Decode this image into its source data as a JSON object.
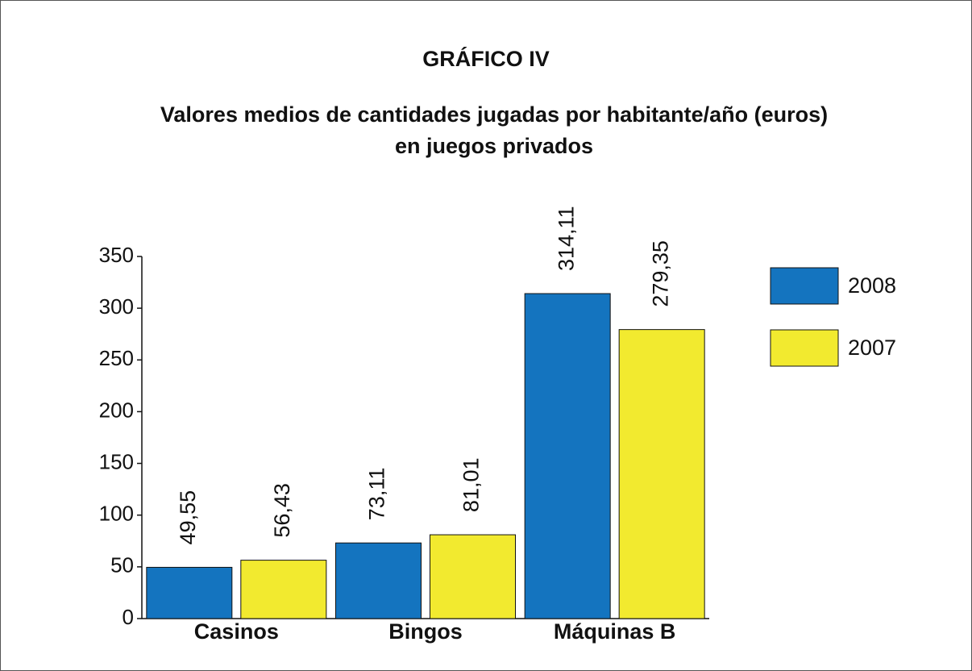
{
  "chart_data": {
    "type": "bar",
    "title": "GRÁFICO IV",
    "subtitle": [
      "Valores medios de cantidades jugadas por habitante/año (euros)",
      "en juegos privados"
    ],
    "categories": [
      "Casinos",
      "Bingos",
      "Máquinas B"
    ],
    "series": [
      {
        "name": "2008",
        "color": "#1474bf",
        "values": [
          49.55,
          73.11,
          314.11
        ],
        "value_labels": [
          "49,55",
          "73,11",
          "314,11"
        ]
      },
      {
        "name": "2007",
        "color": "#f2ea2f",
        "values": [
          56.43,
          81.01,
          279.35
        ],
        "value_labels": [
          "56,43",
          "81,01",
          "279,35"
        ]
      }
    ],
    "ylim": [
      0,
      350
    ],
    "yticks": [
      0,
      50,
      100,
      150,
      200,
      250,
      300,
      350
    ],
    "legend": "right"
  }
}
